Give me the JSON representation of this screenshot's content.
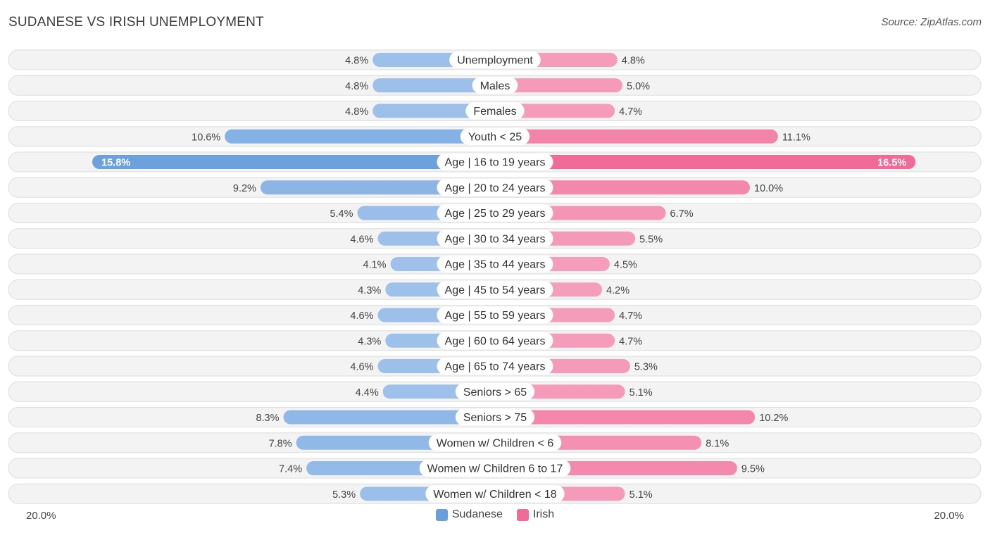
{
  "header": {
    "title": "SUDANESE VS IRISH UNEMPLOYMENT",
    "source": "Source: ZipAtlas.com"
  },
  "axis": {
    "left_label": "20.0%",
    "right_label": "20.0%"
  },
  "legend": [
    {
      "name": "Sudanese",
      "color": "#6a9fdc"
    },
    {
      "name": "Irish",
      "color": "#f06b98"
    }
  ],
  "chart_data": {
    "type": "bar",
    "orientation": "horizontal-diverging",
    "title": "SUDANESE VS IRISH UNEMPLOYMENT",
    "xlim": [
      -20,
      20
    ],
    "categories": [
      "Unemployment",
      "Males",
      "Females",
      "Youth < 25",
      "Age | 16 to 19 years",
      "Age | 20 to 24 years",
      "Age | 25 to 29 years",
      "Age | 30 to 34 years",
      "Age | 35 to 44 years",
      "Age | 45 to 54 years",
      "Age | 55 to 59 years",
      "Age | 60 to 64 years",
      "Age | 65 to 74 years",
      "Seniors > 65",
      "Seniors > 75",
      "Women w/ Children < 6",
      "Women w/ Children 6 to 17",
      "Women w/ Children < 18"
    ],
    "series": [
      {
        "name": "Sudanese",
        "values": [
          4.8,
          4.8,
          4.8,
          10.6,
          15.8,
          9.2,
          5.4,
          4.6,
          4.1,
          4.3,
          4.6,
          4.3,
          4.6,
          4.4,
          8.3,
          7.8,
          7.4,
          5.3
        ],
        "labels": [
          "4.8%",
          "4.8%",
          "4.8%",
          "10.6%",
          "15.8%",
          "9.2%",
          "5.4%",
          "4.6%",
          "4.1%",
          "4.3%",
          "4.6%",
          "4.3%",
          "4.6%",
          "4.4%",
          "8.3%",
          "7.8%",
          "7.4%",
          "5.3%"
        ]
      },
      {
        "name": "Irish",
        "values": [
          4.8,
          5.0,
          4.7,
          11.1,
          16.5,
          10.0,
          6.7,
          5.5,
          4.5,
          4.2,
          4.7,
          4.7,
          5.3,
          5.1,
          10.2,
          8.1,
          9.5,
          5.1
        ],
        "labels": [
          "4.8%",
          "5.0%",
          "4.7%",
          "11.1%",
          "16.5%",
          "10.0%",
          "6.7%",
          "5.5%",
          "4.5%",
          "4.2%",
          "4.7%",
          "4.7%",
          "5.3%",
          "5.1%",
          "10.2%",
          "8.1%",
          "9.5%",
          "5.1%"
        ]
      }
    ]
  }
}
